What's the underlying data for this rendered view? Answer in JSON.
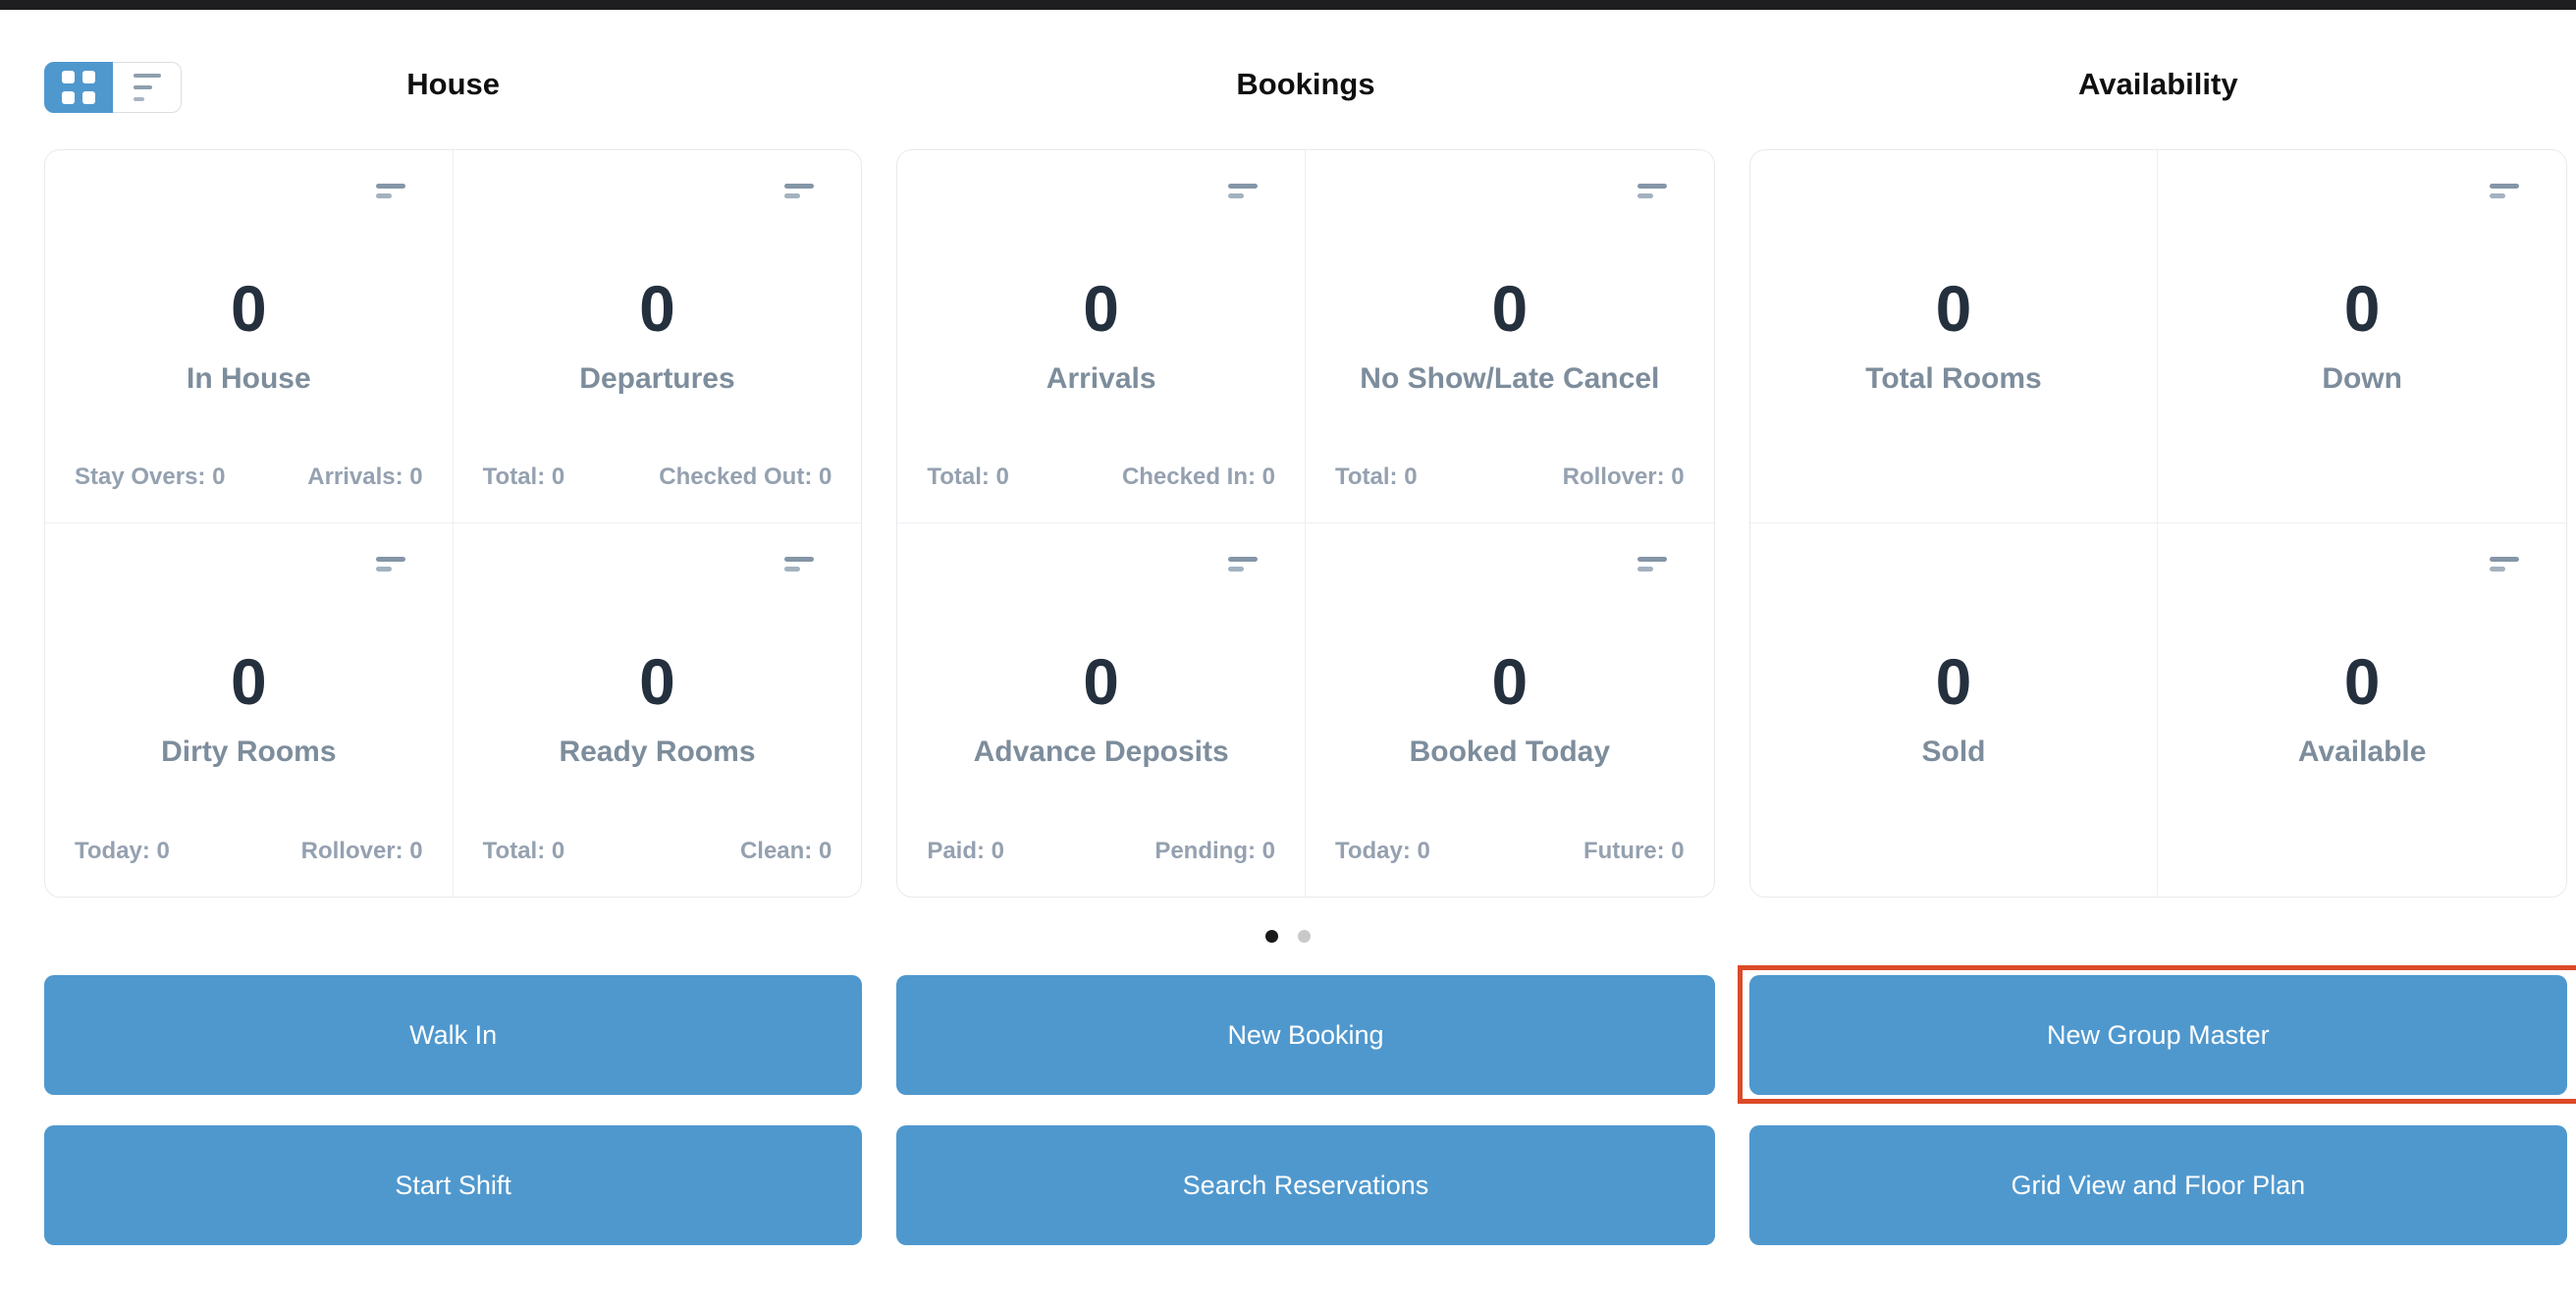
{
  "view_toggle": {
    "selected": "grid"
  },
  "groups": [
    {
      "title": "House",
      "cards": [
        {
          "value": "0",
          "label": "In House",
          "footer_left": "Stay Overs: 0",
          "footer_right": "Arrivals: 0"
        },
        {
          "value": "0",
          "label": "Departures",
          "footer_left": "Total: 0",
          "footer_right": "Checked Out: 0"
        },
        {
          "value": "0",
          "label": "Dirty Rooms",
          "footer_left": "Today: 0",
          "footer_right": "Rollover: 0"
        },
        {
          "value": "0",
          "label": "Ready Rooms",
          "footer_left": "Total: 0",
          "footer_right": "Clean: 0"
        }
      ]
    },
    {
      "title": "Bookings",
      "cards": [
        {
          "value": "0",
          "label": "Arrivals",
          "footer_left": "Total: 0",
          "footer_right": "Checked In: 0"
        },
        {
          "value": "0",
          "label": "No Show/Late Cancel",
          "footer_left": "Total: 0",
          "footer_right": "Rollover: 0"
        },
        {
          "value": "0",
          "label": "Advance Deposits",
          "footer_left": "Paid: 0",
          "footer_right": "Pending: 0"
        },
        {
          "value": "0",
          "label": "Booked Today",
          "footer_left": "Today: 0",
          "footer_right": "Future: 0"
        }
      ]
    },
    {
      "title": "Availability",
      "cards": [
        {
          "value": "0",
          "label": "Total Rooms"
        },
        {
          "value": "0",
          "label": "Down"
        },
        {
          "value": "0",
          "label": "Sold"
        },
        {
          "value": "0",
          "label": "Available"
        }
      ]
    }
  ],
  "pagination": {
    "total_pages": 2,
    "active_index": 0
  },
  "buttons": [
    {
      "label": "Walk In"
    },
    {
      "label": "New Booking"
    },
    {
      "label": "New Group Master",
      "highlighted": true
    },
    {
      "label": "Start Shift"
    },
    {
      "label": "Search Reservations"
    },
    {
      "label": "Grid View and Floor Plan"
    }
  ],
  "colors": {
    "accent_blue": "#4f98ce",
    "highlight_red": "#dc4a29",
    "value_dark": "#25303e",
    "label_gray": "#7d8d9c",
    "footer_gray": "#95a1b0",
    "dot_active": "#1a1a1a",
    "dot_inactive": "#c9c9c9",
    "topbar_black": "#1e1e20"
  }
}
